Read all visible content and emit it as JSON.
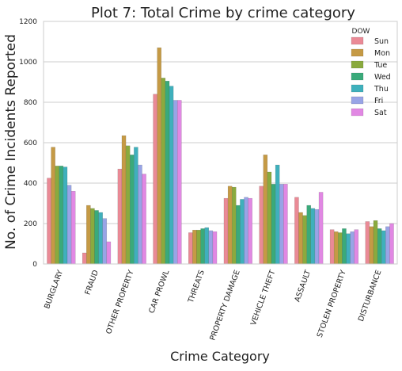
{
  "chart_data": {
    "type": "bar",
    "title": "Plot 7: Total Crime by crime category",
    "xlabel": "Crime Category",
    "ylabel": "No. of Crime Incidents Reported",
    "ylim": [
      0,
      1200
    ],
    "yticks": [
      0,
      200,
      400,
      600,
      800,
      1000,
      1200
    ],
    "grid": true,
    "legend": {
      "title": "DOW",
      "placement": "top-right"
    },
    "categories": [
      "BURGLARY",
      "FRAUD",
      "OTHER PROPERTY",
      "CAR PROWL",
      "THREATS",
      "PROPERTY DAMAGE",
      "VEHICLE THEFT",
      "ASSAULT",
      "STOLEN PROPERTY",
      "DISTURBANCE"
    ],
    "series": [
      {
        "name": "Sun",
        "color": "#ea8a96",
        "values": [
          425,
          55,
          470,
          840,
          155,
          325,
          385,
          330,
          170,
          210
        ]
      },
      {
        "name": "Mon",
        "color": "#c59a45",
        "values": [
          578,
          290,
          635,
          1070,
          168,
          385,
          540,
          255,
          160,
          185
        ]
      },
      {
        "name": "Tue",
        "color": "#8aaa3e",
        "values": [
          485,
          275,
          585,
          920,
          168,
          380,
          455,
          240,
          155,
          215
        ]
      },
      {
        "name": "Wed",
        "color": "#3aaa7a",
        "values": [
          485,
          265,
          540,
          905,
          175,
          290,
          395,
          290,
          175,
          175
        ]
      },
      {
        "name": "Thu",
        "color": "#3fb0bc",
        "values": [
          480,
          255,
          578,
          880,
          180,
          320,
          490,
          275,
          150,
          165
        ]
      },
      {
        "name": "Fri",
        "color": "#98a4e6",
        "values": [
          390,
          225,
          490,
          810,
          165,
          330,
          395,
          270,
          160,
          185
        ]
      },
      {
        "name": "Sat",
        "color": "#e188e3",
        "values": [
          360,
          110,
          445,
          810,
          160,
          325,
          395,
          355,
          170,
          200
        ]
      }
    ]
  }
}
